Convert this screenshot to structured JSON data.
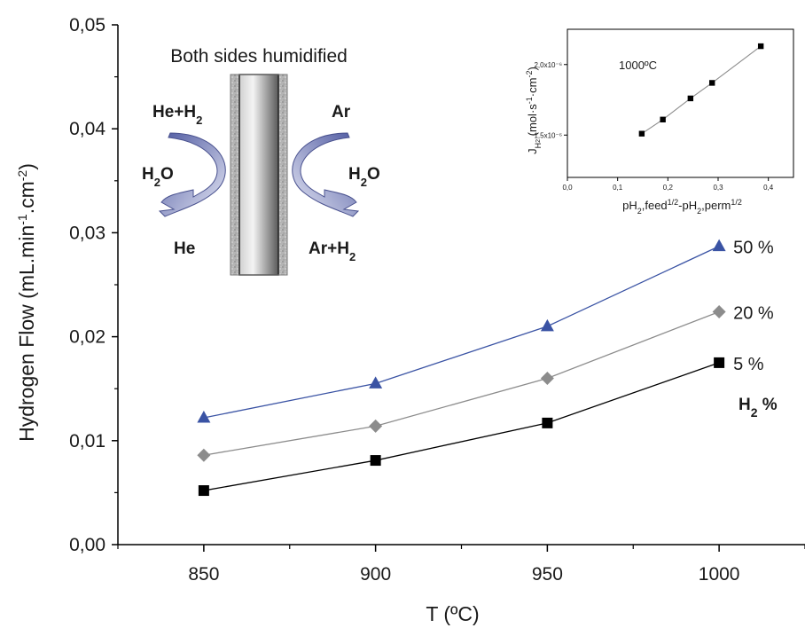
{
  "chart_data": [
    {
      "type": "line",
      "xlabel": "T (ºC)",
      "ylabel_main": "Hydrogen Flow (mL.min",
      "ylabel_sup1": "-1",
      "ylabel_mid": ".cm",
      "ylabel_sup2": "-2",
      "ylabel_end": ")",
      "xlim": [
        825,
        1025
      ],
      "ylim": [
        0,
        0.05
      ],
      "x_ticks": [
        850,
        900,
        950,
        1000
      ],
      "x_tick_labels": [
        "850",
        "900",
        "950",
        "1000"
      ],
      "y_ticks": [
        0,
        0.01,
        0.02,
        0.03,
        0.04,
        0.05
      ],
      "y_tick_labels": [
        "0,00",
        "0,01",
        "0,02",
        "0,03",
        "0,04",
        "0,05"
      ],
      "x": [
        850,
        900,
        950,
        1000
      ],
      "legend_title_main": "H",
      "legend_title_sub": "2",
      "legend_title_end": " %",
      "series": [
        {
          "name": "50 %",
          "values": [
            0.0122,
            0.0155,
            0.021,
            0.0287
          ],
          "color": "#3a53a4",
          "line_color": "#3a53a4",
          "marker": "triangle"
        },
        {
          "name": "20 %",
          "values": [
            0.0086,
            0.0114,
            0.016,
            0.0224
          ],
          "color": "#8c8c8c",
          "line_color": "#8c8c8c",
          "marker": "diamond"
        },
        {
          "name": "5 %",
          "values": [
            0.0052,
            0.0081,
            0.0117,
            0.0175
          ],
          "color": "#000000",
          "line_color": "#000000",
          "marker": "square"
        }
      ]
    },
    {
      "type": "line",
      "annotation": "1000ºC",
      "xlabel_parts": [
        "pH",
        "2",
        ",feed",
        "1/2",
        "-pH",
        "2",
        ",perm",
        "1/2"
      ],
      "ylabel_parts": [
        "J",
        "H",
        "2",
        " (mol·s",
        "-1",
        "·cm",
        "-2",
        ")"
      ],
      "xlim": [
        0,
        0.45
      ],
      "ylim": [
        1.2,
        2.25
      ],
      "x_ticks": [
        0,
        0.1,
        0.2,
        0.3,
        0.4
      ],
      "x_tick_labels": [
        "0,0",
        "0,1",
        "0,2",
        "0,3",
        "0,4"
      ],
      "y_ticks": [
        1.5,
        2.0
      ],
      "y_tick_labels": [
        "1,5x10⁻⁶",
        "2,0x10⁻⁶"
      ],
      "x": [
        0.148,
        0.19,
        0.245,
        0.288,
        0.385
      ],
      "y": [
        1.51,
        1.61,
        1.76,
        1.87,
        2.13
      ],
      "color": "#000000",
      "line_color": "#8c8c8c"
    }
  ],
  "diagram": {
    "title": "Both sides humidified",
    "left_top_main": "He+H",
    "left_top_sub": "2",
    "left_mid_main": "H",
    "left_mid_sub": "2",
    "left_mid_end": "O",
    "left_bottom": "He",
    "right_top": "Ar",
    "right_mid_main": "H",
    "right_mid_sub": "2",
    "right_mid_end": "O",
    "right_bottom_main": "Ar+H",
    "right_bottom_sub": "2",
    "arrow_color": "#6a73b6",
    "membrane_color": "#7a7a7a"
  }
}
